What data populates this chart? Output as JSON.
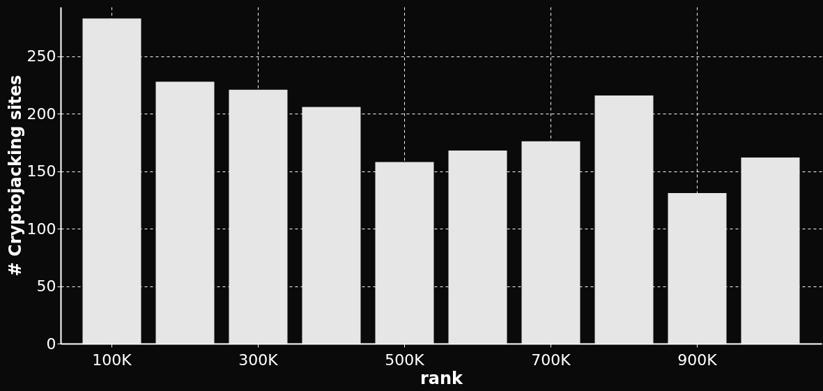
{
  "chart_data": {
    "type": "bar",
    "xlabel": "rank",
    "ylabel": "# Cryptojacking sites",
    "categories": [
      "100K",
      null,
      "300K",
      null,
      "500K",
      null,
      "700K",
      null,
      "900K",
      null
    ],
    "values": [
      283,
      228,
      221,
      206,
      158,
      168,
      176,
      216,
      131,
      162
    ],
    "color": "#e6e6e6",
    "ylim": [
      0,
      293
    ],
    "yticks": [
      0,
      50,
      100,
      150,
      200,
      250
    ],
    "grid": true
  }
}
